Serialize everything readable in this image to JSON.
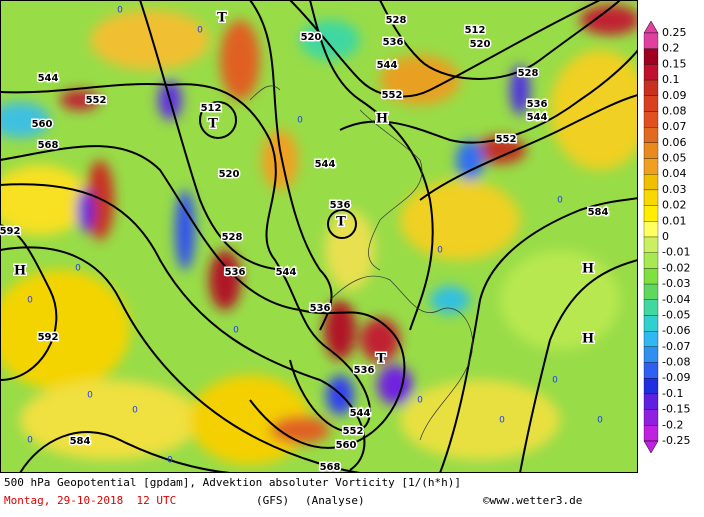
{
  "footer": {
    "title": "500 hPa Geopotential [gpdam], Advektion absoluter Vorticity [1/(h*h)]",
    "date": "Montag, 29-10-2018  12 UTC",
    "model": "(GFS)",
    "analysis": "(Analyse)",
    "copyright": "©www.wetter3.de"
  },
  "colorbar": {
    "labels": [
      "0.25",
      "0.2",
      "0.15",
      "0.1",
      "0.09",
      "0.08",
      "0.07",
      "0.06",
      "0.05",
      "0.04",
      "0.03",
      "0.02",
      "0.01",
      "0",
      "-0.01",
      "-0.02",
      "-0.03",
      "-0.04",
      "-0.05",
      "-0.06",
      "-0.07",
      "-0.08",
      "-0.09",
      "-0.1",
      "-0.15",
      "-0.2",
      "-0.25"
    ]
  },
  "contour_labels": [
    "552",
    "520",
    "528",
    "536",
    "544",
    "552",
    "512",
    "520",
    "528",
    "536",
    "544",
    "552",
    "560",
    "568",
    "544",
    "512",
    "520",
    "528",
    "536",
    "544",
    "544",
    "536",
    "536",
    "536",
    "544",
    "552",
    "560",
    "568",
    "584",
    "592",
    "592",
    "584"
  ],
  "pressure_centers": [
    "T",
    "T",
    "H",
    "T",
    "T",
    "H",
    "H",
    "H"
  ],
  "zero_labels": [
    "0",
    "0",
    "0",
    "0",
    "0",
    "0",
    "0",
    "0",
    "0",
    "0",
    "0",
    "0",
    "0",
    "0",
    "0",
    "0"
  ]
}
